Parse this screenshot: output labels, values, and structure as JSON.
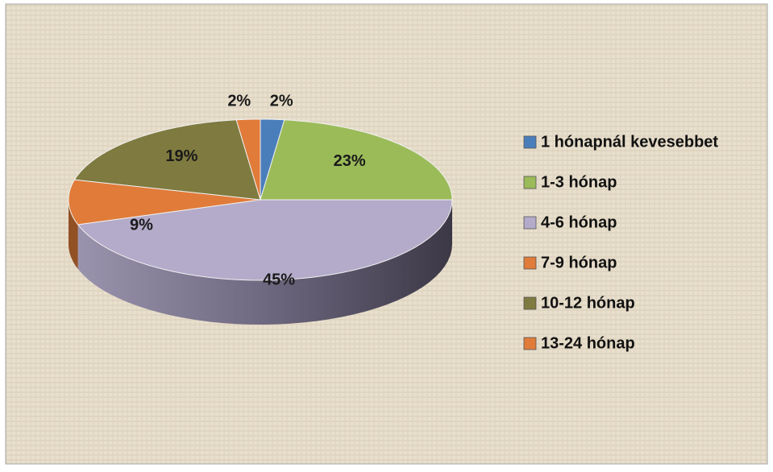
{
  "chart_data": {
    "type": "pie",
    "categories": [
      "1 hónapnál kevesebbet",
      "1-3 hónap",
      "4-6 hónap",
      "7-9 hónap",
      "10-12 hónap",
      "13-24 hónap"
    ],
    "values": [
      2,
      23,
      45,
      9,
      19,
      2
    ],
    "value_labels": [
      "2%",
      "23%",
      "45%",
      "9%",
      "19%",
      "2%"
    ],
    "colors": [
      "#4a7ebb",
      "#9bbb59",
      "#b4abca",
      "#e07b39",
      "#7f7a3f",
      "#e07b39"
    ],
    "legend": "right"
  }
}
